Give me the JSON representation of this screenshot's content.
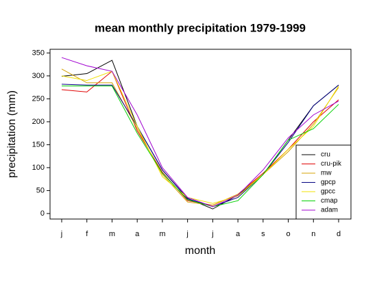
{
  "chart_data": {
    "type": "line",
    "title": "mean monthly precipitation 1979-1999",
    "x_label": "month",
    "y_label": "precipitation (mm)",
    "categories": [
      "j",
      "f",
      "m",
      "a",
      "m",
      "j",
      "j",
      "a",
      "s",
      "o",
      "n",
      "d"
    ],
    "ylim": [
      -12,
      358
    ],
    "yticks": [
      0,
      50,
      100,
      150,
      200,
      250,
      300,
      350
    ],
    "legend": "bottom-right",
    "series": [
      {
        "name": "cru",
        "color": "#000000",
        "values": [
          299,
          305,
          334,
          190,
          95,
          33,
          10,
          40,
          85,
          160,
          235,
          280
        ]
      },
      {
        "name": "cru-pik",
        "color": "#e00000",
        "values": [
          270,
          265,
          310,
          180,
          90,
          28,
          18,
          42,
          88,
          140,
          200,
          248
        ]
      },
      {
        "name": "mw",
        "color": "#d4a000",
        "values": [
          315,
          285,
          285,
          185,
          85,
          25,
          18,
          42,
          85,
          135,
          195,
          275
        ]
      },
      {
        "name": "gpcp",
        "color": "#000080",
        "values": [
          282,
          280,
          280,
          190,
          95,
          32,
          15,
          35,
          85,
          155,
          235,
          280
        ]
      },
      {
        "name": "gpcc",
        "color": "#f0e000",
        "values": [
          300,
          290,
          310,
          190,
          80,
          35,
          22,
          38,
          85,
          140,
          190,
          278
        ]
      },
      {
        "name": "cmap",
        "color": "#00d000",
        "values": [
          278,
          278,
          278,
          175,
          88,
          30,
          15,
          28,
          85,
          160,
          185,
          238
        ]
      },
      {
        "name": "adam",
        "color": "#a000d0",
        "values": [
          340,
          322,
          310,
          215,
          100,
          35,
          15,
          40,
          95,
          165,
          215,
          245
        ]
      }
    ]
  }
}
